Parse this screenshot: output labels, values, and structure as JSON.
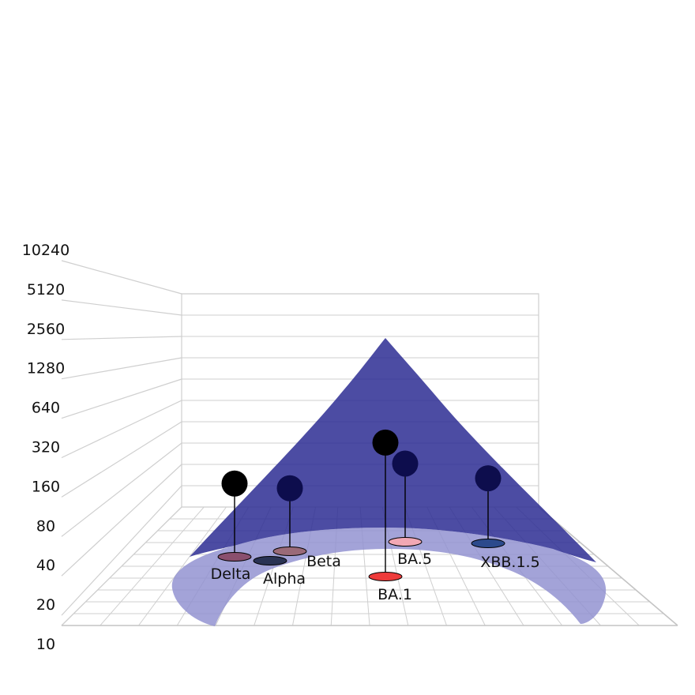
{
  "chart_data": {
    "type": "3d-surface-scatter",
    "title": "",
    "z_axis": {
      "scale": "log2",
      "range": [
        10,
        10240
      ],
      "ticks": [
        "10240",
        "5120",
        "2560",
        "1280",
        "640",
        "320",
        "160",
        "80",
        "40",
        "20",
        "10"
      ]
    },
    "grid": true,
    "colors": {
      "surface": "#2a2a8c",
      "surface_light": "#8f8fcf",
      "grid": "#cfcfcf",
      "marker": "#000000",
      "marker_dark": "#0d0d4d"
    },
    "points": [
      {
        "label": "Delta",
        "titer": 160,
        "base_color": "#8a4f6e"
      },
      {
        "label": "Alpha",
        "titer": 0,
        "base_color": "#2a3354"
      },
      {
        "label": "Beta",
        "titer": 100,
        "base_color": "#9a6a78"
      },
      {
        "label": "BA.1",
        "titer": 2560,
        "base_color": "#ee3b3b"
      },
      {
        "label": "BA.5",
        "titer": 200,
        "base_color": "#f2a8b4"
      },
      {
        "label": "XBB.1.5",
        "titer": 110,
        "base_color": "#2c4a8c"
      }
    ]
  }
}
